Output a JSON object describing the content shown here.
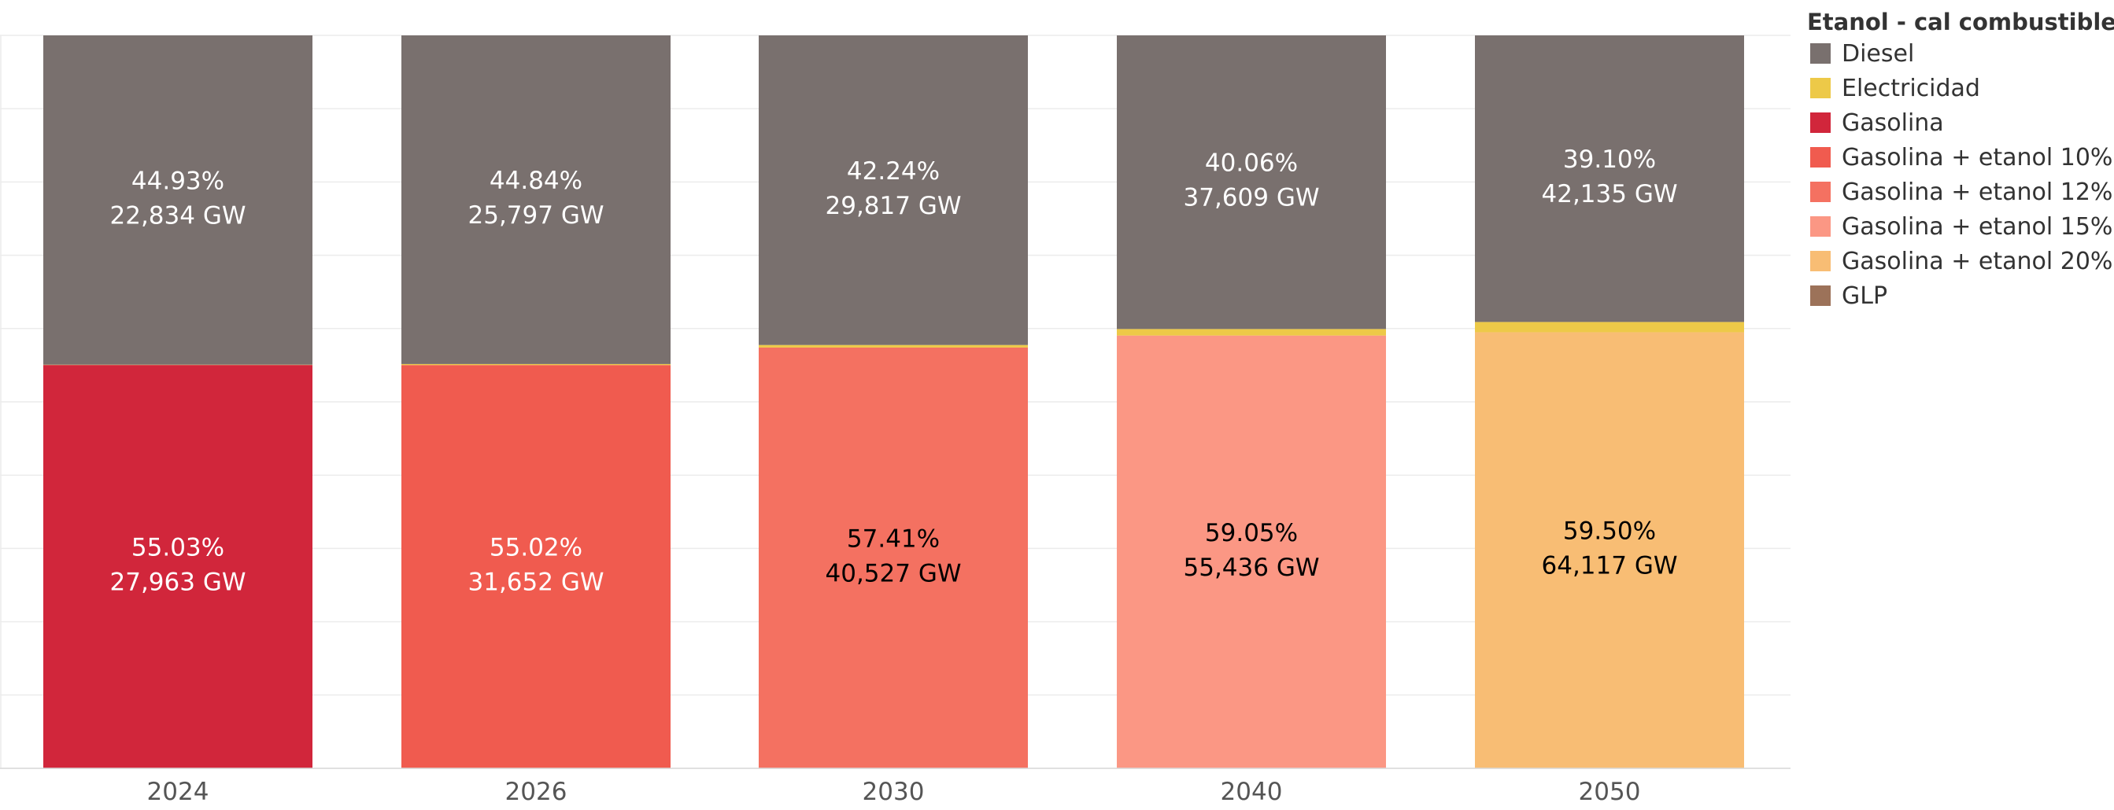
{
  "chart_data": {
    "type": "bar",
    "stacked": true,
    "normalized": true,
    "categories": [
      "2024",
      "2026",
      "2030",
      "2040",
      "2050"
    ],
    "ylim": [
      0,
      100
    ],
    "grid": true,
    "legend": {
      "title": "Etanol - cal combustible",
      "position": "right",
      "items": [
        {
          "name": "Diesel",
          "color": "#79706e"
        },
        {
          "name": "Electricidad",
          "color": "#edc948"
        },
        {
          "name": "Gasolina",
          "color": "#d1263b"
        },
        {
          "name": "Gasolina + etanol 10%",
          "color": "#f05b4f"
        },
        {
          "name": "Gasolina + etanol 12%",
          "color": "#f47161"
        },
        {
          "name": "Gasolina + etanol 15%",
          "color": "#fb9784"
        },
        {
          "name": "Gasolina + etanol 20%",
          "color": "#f8bd74"
        },
        {
          "name": "GLP",
          "color": "#9c7259"
        }
      ]
    },
    "bars": [
      {
        "category": "2024",
        "segments": [
          {
            "series": "Gasolina",
            "percent": 55.03,
            "pct_label": "55.03%",
            "value_label": "27,963 GW",
            "text_color": "#ffffff"
          },
          {
            "series": "Electricidad",
            "percent": 0.04
          },
          {
            "series": "Diesel",
            "percent": 44.93,
            "pct_label": "44.93%",
            "value_label": "22,834 GW",
            "text_color": "#ffffff"
          }
        ]
      },
      {
        "category": "2026",
        "segments": [
          {
            "series": "Gasolina + etanol 10%",
            "percent": 55.02,
            "pct_label": "55.02%",
            "value_label": "31,652 GW",
            "text_color": "#ffffff"
          },
          {
            "series": "Electricidad",
            "percent": 0.14
          },
          {
            "series": "Diesel",
            "percent": 44.84,
            "pct_label": "44.84%",
            "value_label": "25,797 GW",
            "text_color": "#ffffff"
          }
        ]
      },
      {
        "category": "2030",
        "segments": [
          {
            "series": "Gasolina + etanol 12%",
            "percent": 57.41,
            "pct_label": "57.41%",
            "value_label": "40,527 GW",
            "text_color": "#000000"
          },
          {
            "series": "Electricidad",
            "percent": 0.35
          },
          {
            "series": "Diesel",
            "percent": 42.24,
            "pct_label": "42.24%",
            "value_label": "29,817 GW",
            "text_color": "#ffffff"
          }
        ]
      },
      {
        "category": "2040",
        "segments": [
          {
            "series": "Gasolina + etanol 15%",
            "percent": 59.05,
            "pct_label": "59.05%",
            "value_label": "55,436 GW",
            "text_color": "#000000"
          },
          {
            "series": "Electricidad",
            "percent": 0.89
          },
          {
            "series": "Diesel",
            "percent": 40.06,
            "pct_label": "40.06%",
            "value_label": "37,609 GW",
            "text_color": "#ffffff"
          }
        ]
      },
      {
        "category": "2050",
        "segments": [
          {
            "series": "Gasolina + etanol 20%",
            "percent": 59.5,
            "pct_label": "59.50%",
            "value_label": "64,117 GW",
            "text_color": "#000000"
          },
          {
            "series": "Electricidad",
            "percent": 1.4
          },
          {
            "series": "Diesel",
            "percent": 39.1,
            "pct_label": "39.10%",
            "value_label": "42,135 GW",
            "text_color": "#ffffff"
          }
        ]
      }
    ]
  }
}
